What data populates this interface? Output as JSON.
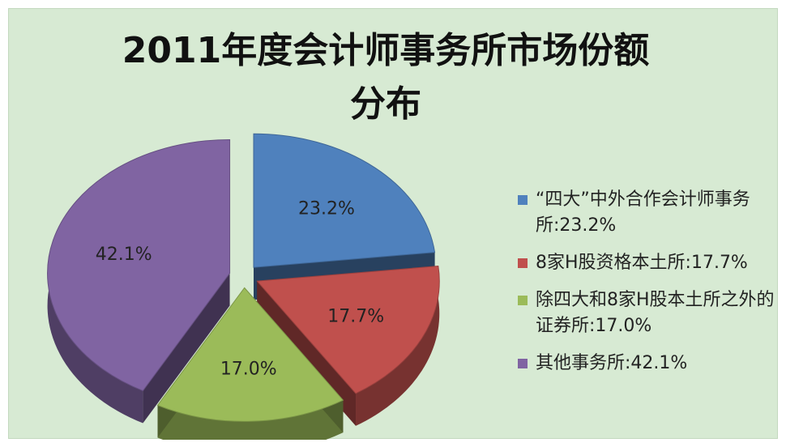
{
  "chart_data": {
    "type": "pie",
    "title_line1": "2011年度会计师事务所市场份额",
    "title_line2": "分布",
    "series": [
      {
        "name": "“四大”中外合作会计师事务所:23.2%",
        "label": "23.2%",
        "value": 23.2,
        "color": "#4f81bd"
      },
      {
        "name": "8家H股资格本土所:17.7%",
        "label": "17.7%",
        "value": 17.7,
        "color": "#c0504d"
      },
      {
        "name": "除四大和8家H股本土所之外的证券所:17.0%",
        "label": "17.0%",
        "value": 17.0,
        "color": "#9bbb59"
      },
      {
        "name": "其他事务所:42.1%",
        "label": "42.1%",
        "value": 42.1,
        "color": "#8064a2"
      }
    ],
    "legend_placement": "right",
    "exploded": true,
    "three_d": true
  }
}
